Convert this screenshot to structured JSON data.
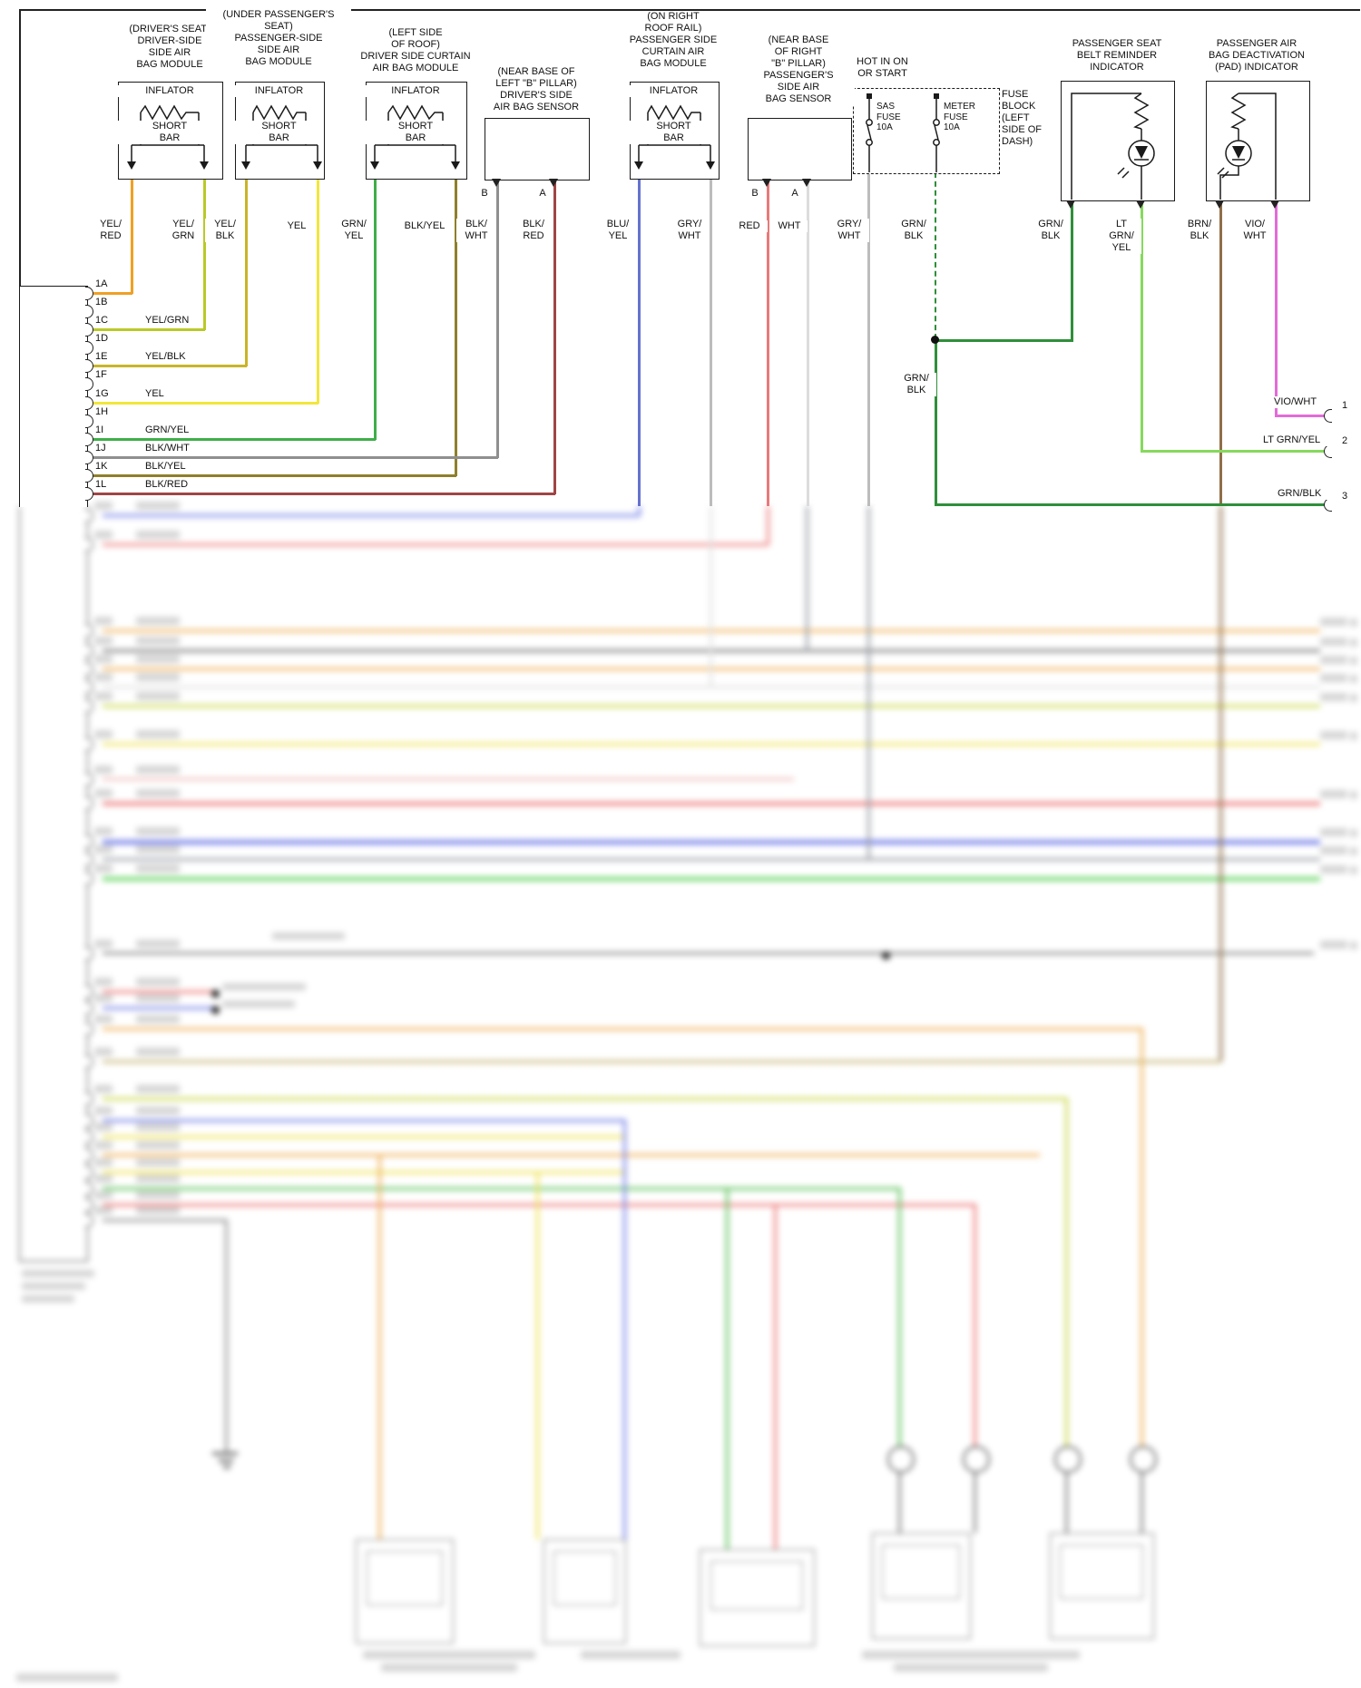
{
  "page": {
    "type": "airbag-system-wiring-diagram"
  },
  "modules": {
    "driver_side_airbag": {
      "title": "(DRIVER'S SEAT)\nDRIVER-SIDE\nSIDE AIR\nBAG MODULE"
    },
    "passenger_side_airbag": {
      "title": "(UNDER PASSENGER'S\nSEAT)\nPASSENGER-SIDE\nSIDE AIR\nBAG MODULE"
    },
    "driver_curtain": {
      "title": "(LEFT SIDE\nOF ROOF)\nDRIVER SIDE CURTAIN\nAIR BAG MODULE"
    },
    "driver_sensor": {
      "title": "(NEAR BASE OF\nLEFT \"B\" PILLAR)\nDRIVER'S SIDE\nAIR BAG SENSOR"
    },
    "passenger_curtain": {
      "title": "(ON RIGHT\nROOF RAIL)\nPASSENGER SIDE\nCURTAIN AIR\nBAG MODULE"
    },
    "passenger_sensor": {
      "title": "(NEAR BASE\nOF RIGHT\n\"B\" PILLAR)\nPASSENGER'S\nSIDE AIR\nBAG SENSOR"
    },
    "seat_belt_indicator": {
      "title": "PASSENGER SEAT\nBELT REMINDER\nINDICATOR"
    },
    "pad_indicator": {
      "title": "PASSENGER AIR\nBAG DEACTIVATION\n(PAD) INDICATOR"
    }
  },
  "power": {
    "hot_label": "HOT IN ON\nOR START",
    "fuse_block_label": "FUSE\nBLOCK\n(LEFT\nSIDE OF\nDASH)",
    "sas_fuse": "SAS\nFUSE\n10A",
    "meter_fuse": "METER\nFUSE\n10A"
  },
  "parts": {
    "inflator": "INFLATOR",
    "short_bar": "SHORT\nBAR"
  },
  "terminals": {
    "b": "B",
    "a": "A"
  },
  "wire_labels": {
    "yel_red": "YEL/\nRED",
    "yel_grn": "YEL/\nGRN",
    "yel_blk": "YEL/\nBLK",
    "yel": "YEL",
    "grn_yel": "GRN/\nYEL",
    "blk_yel": "BLK/YEL",
    "blk_wht": "BLK/\nWHT",
    "blk_red": "BLK/\nRED",
    "blu_yel": "BLU/\nYEL",
    "gry_wht": "GRY/\nWHT",
    "red": "RED",
    "wht": "WHT",
    "grn_blk": "GRN/\nBLK",
    "lt_grn_yel": "LT\nGRN/\nYEL",
    "brn_blk": "BRN/\nBLK",
    "vio_wht": "VIO/\nWHT"
  },
  "connector": {
    "pins": [
      {
        "id": "1A",
        "wire": ""
      },
      {
        "id": "1B",
        "wire": ""
      },
      {
        "id": "1C",
        "wire": "YEL/GRN"
      },
      {
        "id": "1D",
        "wire": ""
      },
      {
        "id": "1E",
        "wire": "YEL/BLK"
      },
      {
        "id": "1F",
        "wire": ""
      },
      {
        "id": "1G",
        "wire": "YEL"
      },
      {
        "id": "1H",
        "wire": ""
      },
      {
        "id": "1I",
        "wire": "GRN/YEL"
      },
      {
        "id": "1J",
        "wire": "BLK/WHT"
      },
      {
        "id": "1K",
        "wire": "BLK/YEL"
      },
      {
        "id": "1L",
        "wire": "BLK/RED"
      }
    ]
  },
  "right_edge": {
    "rows": [
      {
        "label": "VIO/WHT",
        "pin": "1"
      },
      {
        "label": "LT GRN/YEL",
        "pin": "2"
      },
      {
        "label": "GRN/BLK",
        "pin": "3"
      }
    ]
  },
  "colors": {
    "yel_red": "#efa023",
    "yel_grn": "#b9c927",
    "yel_blk": "#c9b428",
    "yel": "#f2e63b",
    "grn_yel": "#3fae49",
    "blk_yel": "#8f7f2a",
    "blk_wht": "#8f8f8f",
    "blk_red": "#a04545",
    "blu_yel": "#6572cf",
    "gry_wht": "#bcbcbc",
    "red": "#e87a7a",
    "wht": "#dcdcdc",
    "grn_blk": "#2f8f3a",
    "lt_grn_yel": "#86d95d",
    "brn_blk": "#8f6f48",
    "vio_wht": "#e36bd9"
  }
}
